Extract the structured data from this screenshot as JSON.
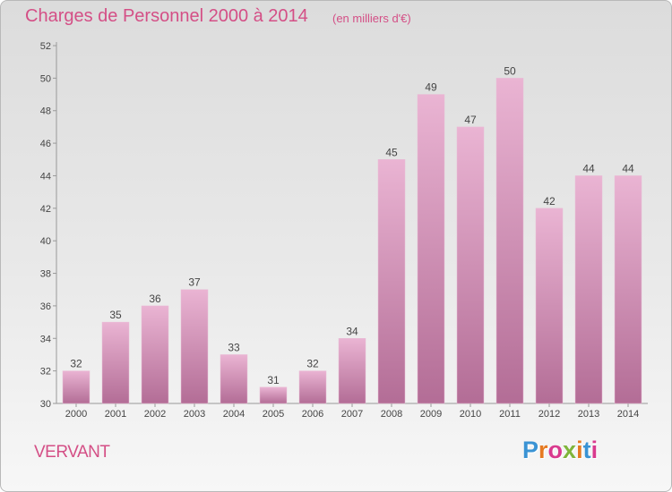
{
  "title": "Charges de Personnel 2000 à 2014",
  "subtitle": "(en milliers d'€)",
  "commune": "VERVANT",
  "logo": {
    "letters": [
      "P",
      "r",
      "o",
      "x",
      "i",
      "t",
      "i"
    ],
    "colors": [
      "#3a93d4",
      "#e67a22",
      "#d93a8e",
      "#7fb53a",
      "#e67a22",
      "#3a93d4",
      "#d93a8e"
    ]
  },
  "colors": {
    "bar_light": "#eab4d3",
    "bar_dark": "#b36d96",
    "text": "#d44f86"
  },
  "chart_data": {
    "type": "bar",
    "title": "Charges de Personnel 2000 à 2014",
    "subtitle": "(en milliers d'€)",
    "categories": [
      "2000",
      "2001",
      "2002",
      "2003",
      "2004",
      "2005",
      "2006",
      "2007",
      "2008",
      "2009",
      "2010",
      "2011",
      "2012",
      "2013",
      "2014"
    ],
    "values": [
      32,
      35,
      36,
      37,
      33,
      31,
      32,
      34,
      45,
      49,
      47,
      50,
      42,
      44,
      44
    ],
    "ylim": [
      30,
      52
    ],
    "yticks": [
      30,
      32,
      34,
      36,
      38,
      40,
      42,
      44,
      46,
      48,
      50,
      52
    ],
    "grid": false,
    "xlabel": "",
    "ylabel": ""
  }
}
